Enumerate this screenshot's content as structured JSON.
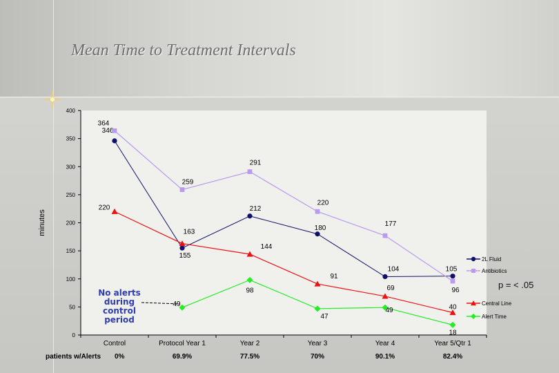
{
  "slide": {
    "title": "Mean Time to Treatment Intervals",
    "note": "No alerts during control period",
    "p_value": "p = < .05",
    "alerts_label": "patients w/Alerts",
    "alerts_values": [
      "0%",
      "69.9%",
      "77.5%",
      "70%",
      "90.1%",
      "82.4%"
    ]
  },
  "chart_data": {
    "type": "line",
    "title": "Mean Time to Treatment Intervals",
    "xlabel": "",
    "ylabel": "minutes",
    "ylim": [
      0,
      400
    ],
    "yticks": [
      0,
      50,
      100,
      150,
      200,
      250,
      300,
      350,
      400
    ],
    "categories": [
      "Control",
      "Protocol Year 1",
      "Year 2",
      "Year 3",
      "Year 4",
      "Year 5/Qtr 1"
    ],
    "legend_position": "right",
    "series": [
      {
        "name": "2L Fluid",
        "color": "#10106a",
        "marker": "circle",
        "values": [
          346,
          155,
          212,
          180,
          104,
          105
        ],
        "labels": [
          "346",
          "155",
          "",
          "180",
          "104",
          "105"
        ]
      },
      {
        "name": "Antibiotics",
        "color": "#b89af0",
        "marker": "square",
        "values": [
          364,
          259,
          291,
          220,
          177,
          96
        ],
        "labels": [
          "364",
          "259",
          "291",
          "220",
          "177",
          "96"
        ]
      },
      {
        "name": "Central Line",
        "color": "#ee1111",
        "marker": "triangle",
        "values": [
          220,
          163,
          144,
          91,
          69,
          40
        ],
        "labels": [
          "220",
          "163",
          "144",
          "91",
          "69",
          "40"
        ]
      },
      {
        "name": "Alert Time",
        "color": "#22ee22",
        "marker": "diamond",
        "values": [
          null,
          49,
          98,
          47,
          49,
          18
        ],
        "labels": [
          "",
          "49",
          "98",
          "47",
          "49",
          "18"
        ]
      }
    ],
    "extra_labels": [
      "212"
    ]
  }
}
